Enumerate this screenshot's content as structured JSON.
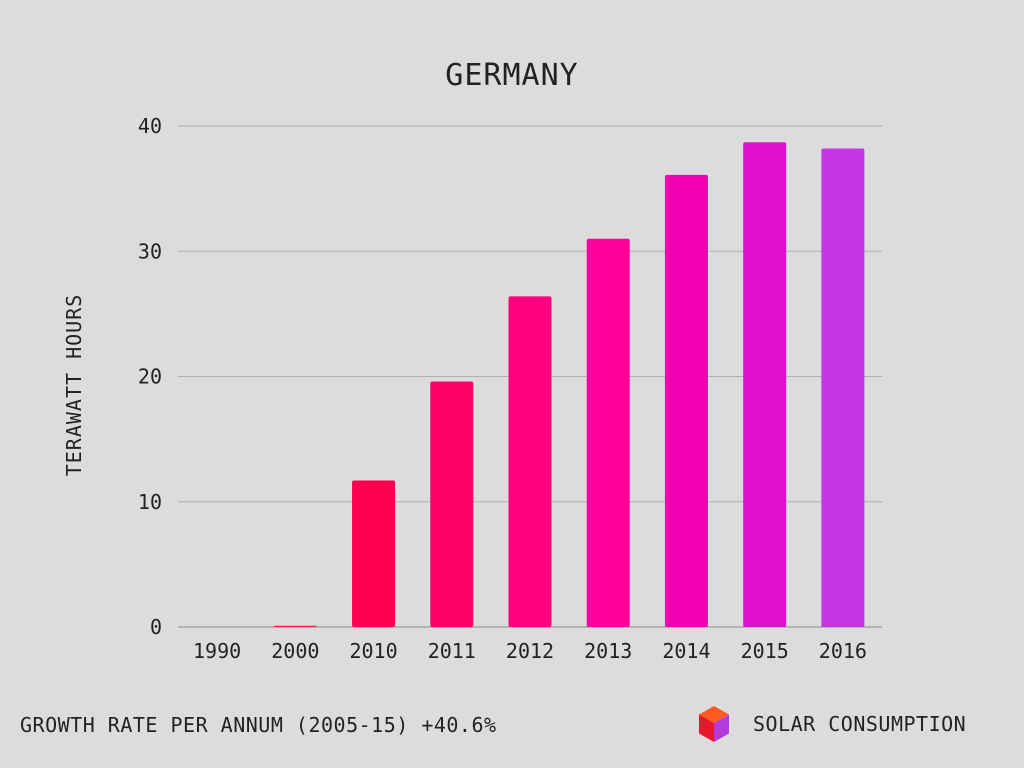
{
  "chart_data": {
    "type": "bar",
    "title": "GERMANY",
    "ylabel": "TERAWATT HOURS",
    "xlabel": "",
    "categories": [
      "1990",
      "2000",
      "2010",
      "2011",
      "2012",
      "2013",
      "2014",
      "2015",
      "2016"
    ],
    "values": [
      0,
      0.1,
      11.7,
      19.6,
      26.4,
      31.0,
      36.1,
      38.7,
      38.2
    ],
    "ylim": [
      0,
      40
    ],
    "yticks": [
      0,
      10,
      20,
      30,
      40
    ],
    "grid": true,
    "colors": [
      "#ff1744",
      "#f02048",
      "#ff0050",
      "#ff0066",
      "#ff0080",
      "#ff009a",
      "#f400b4",
      "#e010d0",
      "#c435e6"
    ]
  },
  "footer": {
    "growth_note": "GROWTH RATE PER ANNUM (2005-15) +40.6%"
  },
  "brand": {
    "label": "SOLAR CONSUMPTION",
    "icon": "cube-icon",
    "colors": [
      "#ff5a1f",
      "#e8182c",
      "#b23adf"
    ]
  }
}
